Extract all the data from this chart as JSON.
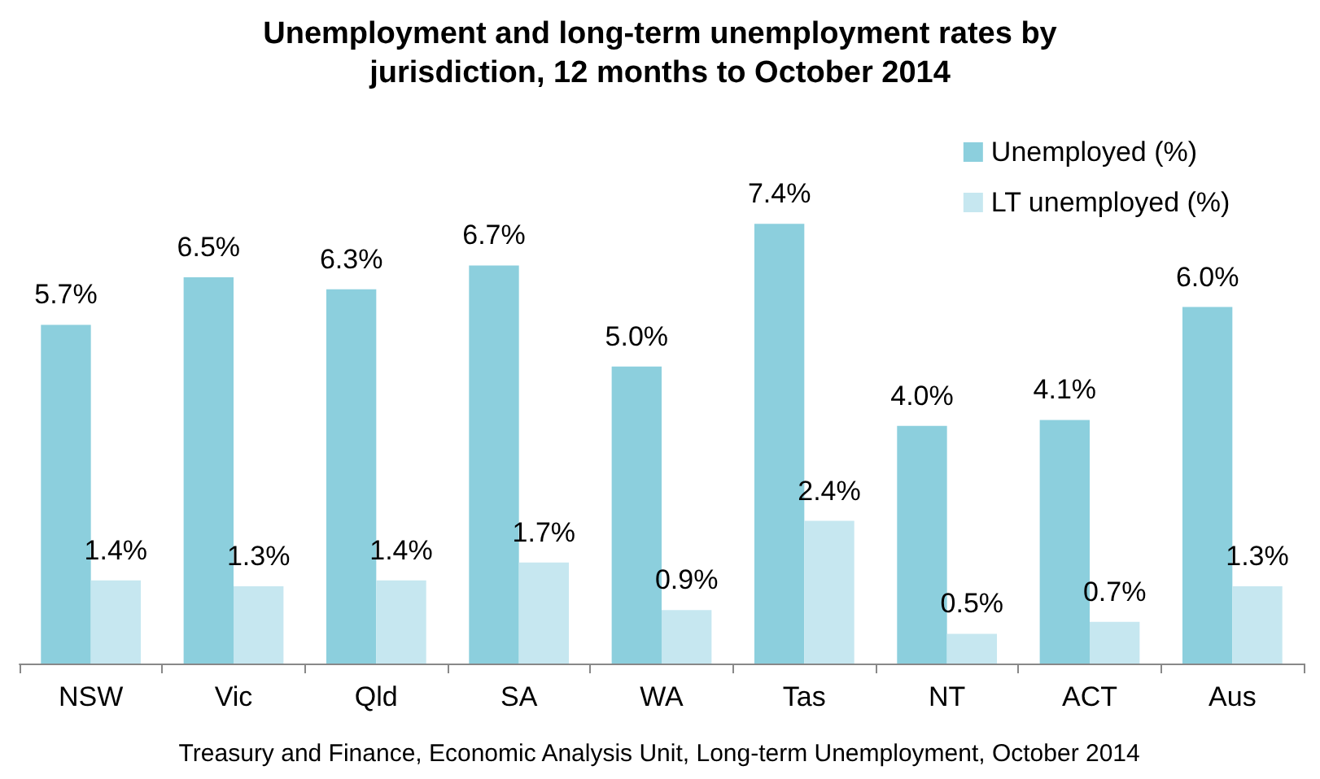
{
  "chart_data": {
    "type": "bar",
    "title": "Unemployment and long-term unemployment rates by\njurisdiction, 12 months to October 2014",
    "categories": [
      "NSW",
      "Vic",
      "Qld",
      "SA",
      "WA",
      "Tas",
      "NT",
      "ACT",
      "Aus"
    ],
    "series": [
      {
        "name": "Unemployed (%)",
        "color": "#8ccfdd",
        "values": [
          5.7,
          6.5,
          6.3,
          6.7,
          5.0,
          7.4,
          4.0,
          4.1,
          6.0
        ],
        "value_labels": [
          "5.7%",
          "6.5%",
          "6.3%",
          "6.7%",
          "5.0%",
          "7.4%",
          "4.0%",
          "4.1%",
          "6.0%"
        ]
      },
      {
        "name": "LT unemployed (%)",
        "color": "#c6e7f0",
        "values": [
          1.4,
          1.3,
          1.4,
          1.7,
          0.9,
          2.4,
          0.5,
          0.7,
          1.3
        ],
        "value_labels": [
          "1.4%",
          "1.3%",
          "1.4%",
          "1.7%",
          "0.9%",
          "2.4%",
          "0.5%",
          "0.7%",
          "1.3%"
        ]
      }
    ],
    "legend": "top right",
    "annotations": [
      "Treasury and Finance, Economic Analysis Unit, Long-term Unemployment, October 2014"
    ]
  }
}
